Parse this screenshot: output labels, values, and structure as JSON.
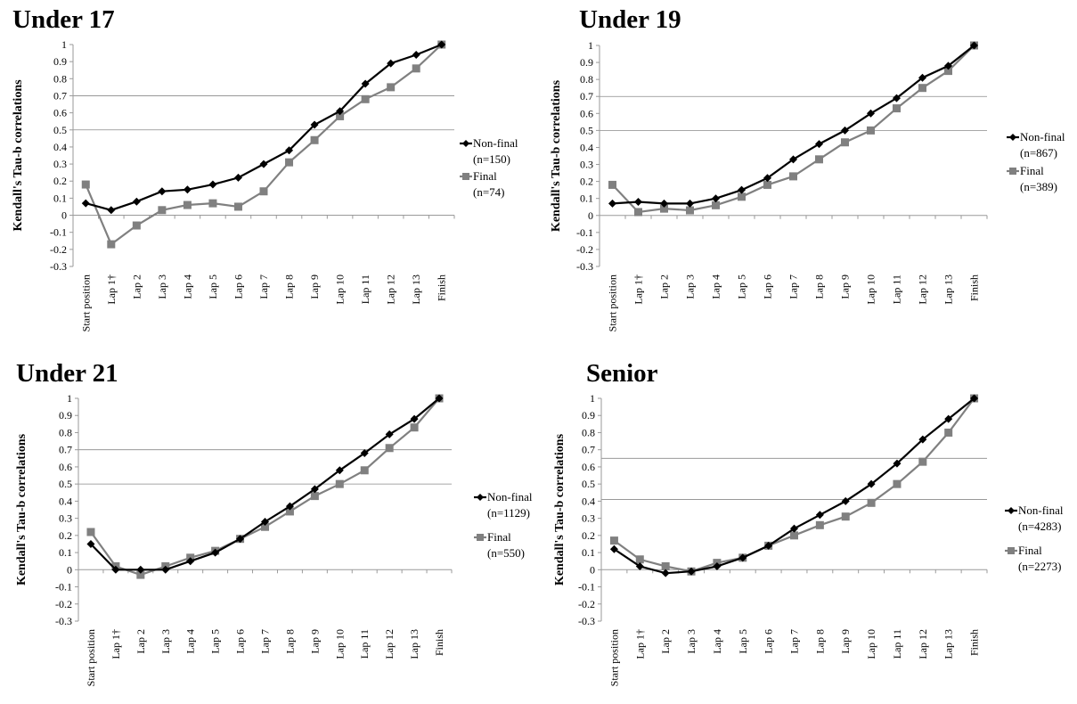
{
  "chart_data": [
    {
      "type": "line",
      "title": "Under 17",
      "ylabel": "Kendall's Tau-b correlations",
      "xlabel": "",
      "categories": [
        "Start position",
        "Lap 1†",
        "Lap 2",
        "Lap 3",
        "Lap 4",
        "Lap 5",
        "Lap 6",
        "Lap 7",
        "Lap 8",
        "Lap 9",
        "Lap 10",
        "Lap 11",
        "Lap 12",
        "Lap 13",
        "Finish"
      ],
      "yticks": [
        "1",
        "0.9",
        "0.8",
        "0.7",
        "0.6",
        "0.5",
        "0.4",
        "0.3",
        "0.2",
        "0.1",
        "0",
        "-0.1",
        "-0.2",
        "-0.3"
      ],
      "ylim": [
        -0.3,
        1
      ],
      "reference_lines": [
        0.7,
        0.5
      ],
      "series": [
        {
          "name": "Non-final",
          "n": "(n=150)",
          "color": "#000000",
          "marker": "diamond",
          "values": [
            0.07,
            0.03,
            0.08,
            0.14,
            0.15,
            0.18,
            0.22,
            0.3,
            0.38,
            0.53,
            0.61,
            0.77,
            0.89,
            0.94,
            1.0
          ]
        },
        {
          "name": "Final",
          "n": "(n=74)",
          "color": "#808080",
          "marker": "square",
          "values": [
            0.18,
            -0.17,
            -0.06,
            0.03,
            0.06,
            0.07,
            0.05,
            0.14,
            0.31,
            0.44,
            0.58,
            0.68,
            0.75,
            0.86,
            1.0
          ]
        }
      ]
    },
    {
      "type": "line",
      "title": "Under 19",
      "ylabel": "Kendall's Tau-b correlations",
      "xlabel": "",
      "categories": [
        "Start position",
        "Lap 1†",
        "Lap 2",
        "Lap 3",
        "Lap 4",
        "Lap 5",
        "Lap 6",
        "Lap 7",
        "Lap 8",
        "Lap 9",
        "Lap 10",
        "Lap 11",
        "Lap 12",
        "Lap 13",
        "Finish"
      ],
      "yticks": [
        "1",
        "0.9",
        "0.8",
        "0.7",
        "0.6",
        "0.5",
        "0.4",
        "0.3",
        "0.2",
        "0.1",
        "0",
        "-0.1",
        "-0.2",
        "-0.3"
      ],
      "ylim": [
        -0.3,
        1
      ],
      "reference_lines": [
        0.7,
        0.5
      ],
      "series": [
        {
          "name": "Non-final",
          "n": "(n=867)",
          "color": "#000000",
          "marker": "diamond",
          "values": [
            0.07,
            0.08,
            0.07,
            0.07,
            0.1,
            0.15,
            0.22,
            0.33,
            0.42,
            0.5,
            0.6,
            0.69,
            0.81,
            0.88,
            1.0
          ]
        },
        {
          "name": "Final",
          "n": "(n=389)",
          "color": "#808080",
          "marker": "square",
          "values": [
            0.18,
            0.02,
            0.04,
            0.03,
            0.06,
            0.11,
            0.18,
            0.23,
            0.33,
            0.43,
            0.5,
            0.63,
            0.75,
            0.85,
            1.0
          ]
        }
      ]
    },
    {
      "type": "line",
      "title": "Under 21",
      "ylabel": "Kendall's Tau-b correlations",
      "xlabel": "",
      "categories": [
        "Start position",
        "Lap 1†",
        "Lap 2",
        "Lap 3",
        "Lap 4",
        "Lap 5",
        "Lap 6",
        "Lap 7",
        "Lap 8",
        "Lap 9",
        "Lap 10",
        "Lap 11",
        "Lap 12",
        "Lap 13",
        "Finish"
      ],
      "yticks": [
        "1",
        "0.9",
        "0.8",
        "0.7",
        "0.6",
        "0.5",
        "0.4",
        "0.3",
        "0.2",
        "0.1",
        "0",
        "-0.1",
        "-0.2",
        "-0.3"
      ],
      "ylim": [
        -0.3,
        1
      ],
      "reference_lines": [
        0.7,
        0.5
      ],
      "series": [
        {
          "name": "Non-final",
          "n": "(n=1129)",
          "color": "#000000",
          "marker": "diamond",
          "values": [
            0.15,
            0.0,
            0.0,
            0.0,
            0.05,
            0.1,
            0.18,
            0.28,
            0.37,
            0.47,
            0.58,
            0.68,
            0.79,
            0.88,
            1.0
          ]
        },
        {
          "name": "Final",
          "n": "(n=550)",
          "color": "#808080",
          "marker": "square",
          "values": [
            0.22,
            0.02,
            -0.03,
            0.02,
            0.07,
            0.11,
            0.18,
            0.25,
            0.34,
            0.43,
            0.5,
            0.58,
            0.71,
            0.83,
            1.0
          ]
        }
      ]
    },
    {
      "type": "line",
      "title": "Senior",
      "ylabel": "Kendall's Tau-b correlations",
      "xlabel": "",
      "categories": [
        "Start position",
        "Lap 1†",
        "Lap 2",
        "Lap 3",
        "Lap 4",
        "Lap 5",
        "Lap 6",
        "Lap 7",
        "Lap 8",
        "Lap 9",
        "Lap 10",
        "Lap 11",
        "Lap 12",
        "Lap 13",
        "Finish"
      ],
      "yticks": [
        "1",
        "0.9",
        "0.8",
        "0.7",
        "0.6",
        "0.5",
        "0.4",
        "0.3",
        "0.2",
        "0.1",
        "0",
        "-0.1",
        "-0.2",
        "-0.3"
      ],
      "ylim": [
        -0.3,
        1
      ],
      "reference_lines": [
        0.65,
        0.41
      ],
      "series": [
        {
          "name": "Non-final",
          "n": "(n=4283)",
          "color": "#000000",
          "marker": "diamond",
          "values": [
            0.12,
            0.02,
            -0.02,
            -0.01,
            0.02,
            0.07,
            0.14,
            0.24,
            0.32,
            0.4,
            0.5,
            0.62,
            0.76,
            0.88,
            1.0
          ]
        },
        {
          "name": "Final",
          "n": "(n=2273)",
          "color": "#808080",
          "marker": "square",
          "values": [
            0.17,
            0.06,
            0.02,
            -0.01,
            0.04,
            0.07,
            0.14,
            0.2,
            0.26,
            0.31,
            0.39,
            0.5,
            0.63,
            0.8,
            1.0
          ]
        }
      ]
    }
  ]
}
